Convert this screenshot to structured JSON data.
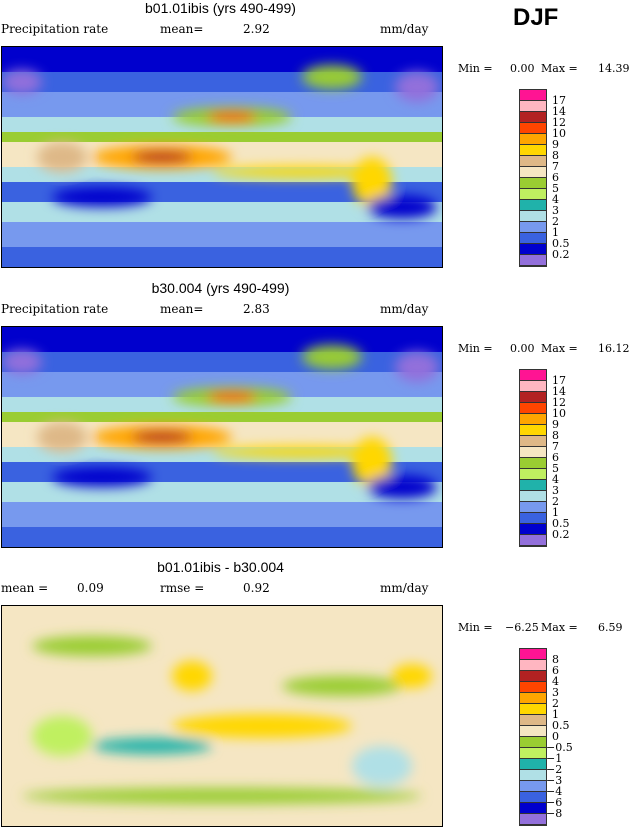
{
  "season": "DJF",
  "panels": [
    {
      "title": "b01.01ibis (yrs 490-499)",
      "left_label": "Precipitation rate",
      "mid_label": "mean=",
      "mid_value": "2.92",
      "units": "mm/day",
      "min_label": "Min =",
      "min": "0.00",
      "max_label": "Max =",
      "max": "14.39"
    },
    {
      "title": "b30.004 (yrs 490-499)",
      "left_label": "Precipitation rate",
      "mid_label": "mean=",
      "mid_value": "2.83",
      "units": "mm/day",
      "min_label": "Min =",
      "min": "0.00",
      "max_label": "Max =",
      "max": "16.12"
    },
    {
      "title": "b01.01ibis - b30.004",
      "left_label": "mean =",
      "left_value": "0.09",
      "mid_label": "rmse =",
      "mid_value": "0.92",
      "units": "mm/day",
      "min_label": "Min =",
      "min": "−6.25",
      "max_label": "Max =",
      "max": "6.59"
    }
  ],
  "colorbar_colors": [
    "#ff1493",
    "#ffb6c1",
    "#b22222",
    "#ff4500",
    "#ffa500",
    "#ffd700",
    "#deb887",
    "#f5e6c3",
    "#9acd32",
    "#c0f060",
    "#20b2aa",
    "#b0e0e6",
    "#7799ee",
    "#3a62e0",
    "#0000cd",
    "#9370db"
  ],
  "colorbar_precip": [
    "17",
    "14",
    "12",
    "10",
    "9",
    "8",
    "7",
    "6",
    "5",
    "4",
    "3",
    "2",
    "1",
    "0.5",
    "0.2"
  ],
  "colorbar_diff": [
    "8",
    "6",
    "4",
    "3",
    "2",
    "1",
    "0.5",
    "0",
    "−0.5",
    "−1",
    "−2",
    "−3",
    "−4",
    "−6",
    "−8"
  ]
}
